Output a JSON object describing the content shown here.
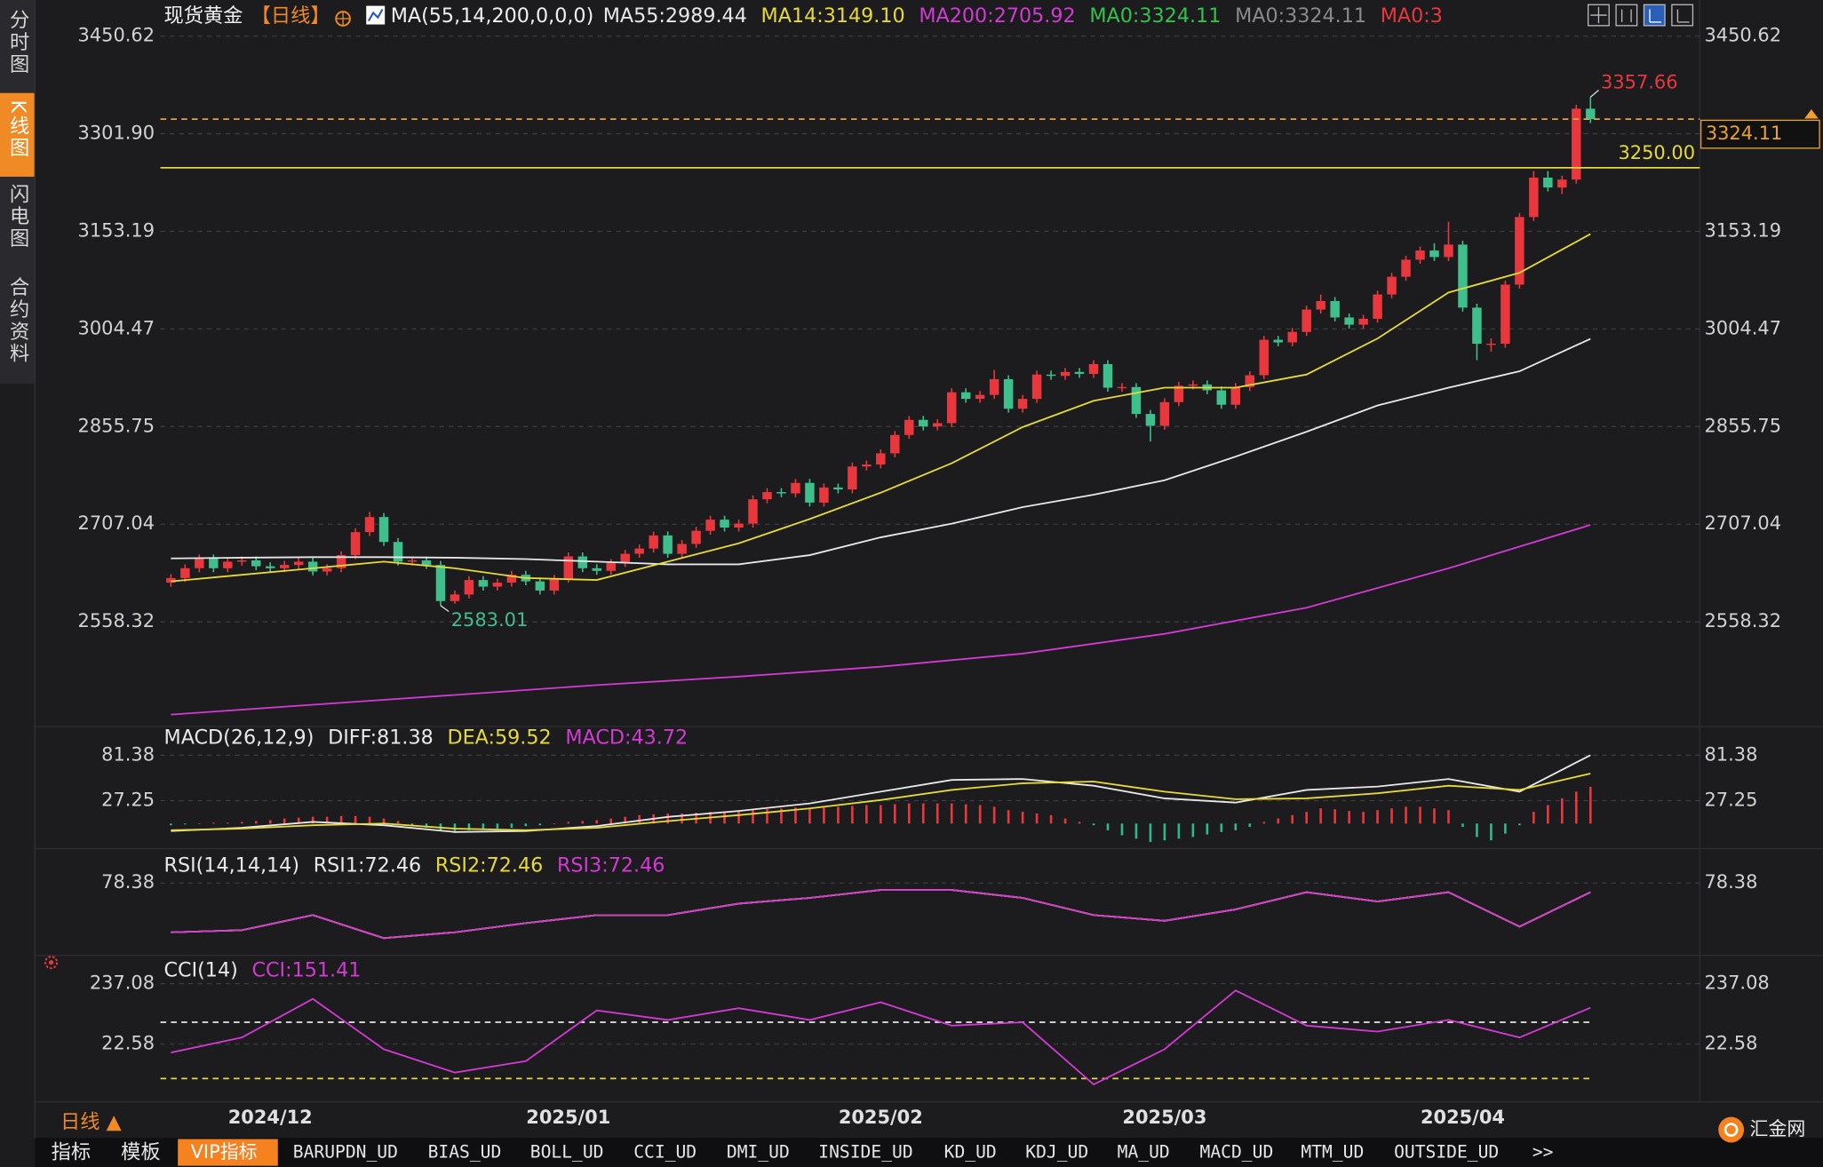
{
  "sidebar": {
    "tabs": [
      "分时图",
      "K线图",
      "闪电图",
      "合约资料"
    ]
  },
  "chart_data": [
    {
      "type": "candlestick",
      "title": "现货黄金",
      "period": "【日线】",
      "subtitle": "MA(55,14,200,0,0,0)",
      "up_color": "#e8383d",
      "down_color": "#3fbf8c",
      "grid": true,
      "ylim": [
        2398.98,
        3491.34
      ],
      "yticks": [
        3450.62,
        {
          "value": 3301.9,
          "label": "3301.90"
        },
        3153.19,
        3004.47,
        2855.75,
        2707.04,
        2558.32
      ],
      "categories": [
        null,
        null,
        null,
        null,
        null,
        null,
        null,
        "2024/12",
        null,
        null,
        null,
        null,
        null,
        null,
        null,
        null,
        null,
        null,
        null,
        null,
        null,
        null,
        null,
        null,
        null,
        null,
        null,
        null,
        "2025/01",
        null,
        null,
        null,
        null,
        null,
        null,
        null,
        null,
        null,
        null,
        null,
        null,
        null,
        null,
        null,
        null,
        null,
        null,
        null,
        null,
        null,
        "2025/02",
        null,
        null,
        null,
        null,
        null,
        null,
        null,
        null,
        null,
        null,
        null,
        null,
        null,
        null,
        null,
        null,
        null,
        null,
        null,
        "2025/03",
        null,
        null,
        null,
        null,
        null,
        null,
        null,
        null,
        null,
        null,
        null,
        null,
        null,
        null,
        null,
        null,
        null,
        null,
        null,
        null,
        "2025/04",
        null,
        null,
        null,
        null,
        null,
        null,
        null,
        null,
        null
      ],
      "open": [
        2618,
        2625,
        2640,
        2655,
        2640,
        2650,
        2652,
        2643,
        2640,
        2645,
        2650,
        2635,
        2640,
        2660,
        2695,
        2718,
        2680,
        2650,
        2652,
        2645,
        2590,
        2600,
        2622,
        2612,
        2618,
        2630,
        2620,
        2606,
        2624,
        2658,
        2640,
        2636,
        2648,
        2662,
        2670,
        2690,
        2662,
        2677,
        2697,
        2714,
        2702,
        2708,
        2745,
        2756,
        2754,
        2770,
        2740,
        2763,
        2760,
        2795,
        2798,
        2815,
        2843,
        2866,
        2856,
        2861,
        2908,
        2898,
        2904,
        2928,
        2883,
        2898,
        2935,
        2933,
        2939,
        2936,
        2951,
        2915,
        2916,
        2875,
        2857,
        2893,
        2918,
        2920,
        2911,
        2889,
        2916,
        2934,
        2988,
        2984,
        3000,
        3034,
        3047,
        3022,
        3011,
        3020,
        3057,
        3084,
        3110,
        3124,
        3114,
        3133,
        3037,
        2982,
        2982,
        3072,
        3175,
        3235,
        3220,
        3232,
        3340
      ],
      "high": [
        2631,
        2646,
        2661,
        2661,
        2656,
        2658,
        2658,
        2649,
        2651,
        2656,
        2656,
        2646,
        2666,
        2701,
        2726,
        2724,
        2686,
        2658,
        2658,
        2651,
        2606,
        2628,
        2628,
        2624,
        2636,
        2636,
        2626,
        2630,
        2664,
        2664,
        2646,
        2654,
        2668,
        2676,
        2696,
        2696,
        2683,
        2703,
        2720,
        2720,
        2714,
        2751,
        2762,
        2762,
        2776,
        2776,
        2769,
        2769,
        2801,
        2804,
        2821,
        2849,
        2872,
        2872,
        2867,
        2914,
        2914,
        2910,
        2942,
        2934,
        2904,
        2941,
        2941,
        2945,
        2945,
        2957,
        2957,
        2922,
        2922,
        2881,
        2899,
        2924,
        2926,
        2926,
        2917,
        2922,
        2940,
        2994,
        2994,
        3006,
        3040,
        3057,
        3053,
        3028,
        3026,
        3063,
        3090,
        3116,
        3130,
        3135,
        3168,
        3139,
        3043,
        2990,
        3078,
        3181,
        3245,
        3245,
        3238,
        3346,
        3357.66
      ],
      "low": [
        2612,
        2619,
        2634,
        2634,
        2634,
        2644,
        2637,
        2634,
        2634,
        2639,
        2629,
        2629,
        2634,
        2654,
        2689,
        2674,
        2644,
        2644,
        2639,
        2583.01,
        2586,
        2594,
        2606,
        2606,
        2612,
        2614,
        2600,
        2600,
        2618,
        2634,
        2630,
        2630,
        2642,
        2656,
        2664,
        2656,
        2656,
        2671,
        2691,
        2696,
        2696,
        2702,
        2739,
        2748,
        2748,
        2734,
        2734,
        2754,
        2754,
        2789,
        2792,
        2809,
        2837,
        2850,
        2850,
        2855,
        2892,
        2892,
        2898,
        2877,
        2877,
        2892,
        2927,
        2927,
        2930,
        2930,
        2909,
        2909,
        2869,
        2833,
        2851,
        2887,
        2912,
        2905,
        2883,
        2883,
        2910,
        2928,
        2978,
        2978,
        2994,
        3028,
        3016,
        3005,
        3005,
        3014,
        3051,
        3078,
        3104,
        3108,
        3108,
        3031,
        2957,
        2970,
        2976,
        3066,
        3169,
        3214,
        3210,
        3226,
        3318
      ],
      "close": [
        2625,
        2640,
        2655,
        2640,
        2650,
        2652,
        2643,
        2640,
        2645,
        2650,
        2635,
        2640,
        2660,
        2695,
        2718,
        2680,
        2650,
        2652,
        2645,
        2590,
        2600,
        2622,
        2612,
        2618,
        2630,
        2620,
        2606,
        2624,
        2658,
        2640,
        2636,
        2648,
        2662,
        2670,
        2690,
        2662,
        2677,
        2697,
        2714,
        2702,
        2708,
        2745,
        2756,
        2754,
        2770,
        2740,
        2763,
        2760,
        2795,
        2798,
        2815,
        2843,
        2866,
        2856,
        2861,
        2908,
        2898,
        2904,
        2928,
        2883,
        2898,
        2935,
        2933,
        2939,
        2936,
        2951,
        2915,
        2916,
        2875,
        2857,
        2893,
        2918,
        2920,
        2911,
        2889,
        2916,
        2934,
        2988,
        2984,
        3000,
        3034,
        3047,
        3022,
        3011,
        3020,
        3057,
        3084,
        3110,
        3124,
        3114,
        3133,
        3037,
        2982,
        2982,
        3072,
        3175,
        3235,
        3220,
        3232,
        3340,
        3324
      ],
      "series": [
        {
          "name": "MA55:2989.44",
          "color": "#e8e8e8",
          "x": [
            0,
            5,
            10,
            15,
            20,
            25,
            30,
            35,
            40,
            45,
            50,
            55,
            60,
            65,
            70,
            75,
            80,
            85,
            90,
            95,
            100
          ],
          "values": [
            2655,
            2656,
            2657,
            2657,
            2656,
            2654,
            2650,
            2646,
            2646,
            2660,
            2687,
            2708,
            2733,
            2752,
            2774,
            2810,
            2848,
            2888,
            2915,
            2940,
            2989.44
          ]
        },
        {
          "name": "MA14:3149.10",
          "color": "#e6d93a",
          "x": [
            0,
            5,
            10,
            15,
            20,
            25,
            30,
            35,
            40,
            45,
            50,
            55,
            60,
            65,
            70,
            75,
            80,
            85,
            90,
            95,
            100
          ],
          "values": [
            2620,
            2630,
            2640,
            2650,
            2640,
            2625,
            2622,
            2650,
            2678,
            2715,
            2755,
            2800,
            2855,
            2895,
            2915,
            2915,
            2935,
            2990,
            3060,
            3090,
            3149.1
          ]
        },
        {
          "name": "MA200:2705.92",
          "color": "#d23ad2",
          "x": [
            0,
            10,
            20,
            30,
            40,
            50,
            60,
            70,
            80,
            90,
            100
          ],
          "values": [
            2417,
            2432,
            2447,
            2462,
            2475,
            2490,
            2510,
            2540,
            2580,
            2640,
            2705.92
          ]
        }
      ],
      "extra_labels": [
        {
          "text": "MA0:3324.11",
          "color": "#33c24a"
        },
        {
          "text": "MA0:3324.11",
          "color": "#8a8a8a"
        },
        {
          "text": "MA0:3",
          "color": "#e8383d"
        }
      ],
      "hlines": [
        {
          "value": 3250,
          "label": "3250.00",
          "color": "#e6d93a",
          "style": "solid",
          "label_position": "inside"
        },
        {
          "value": 3324.11,
          "color": "#f0a030",
          "style": "dashed",
          "label_position": "axis"
        }
      ]
    },
    {
      "type": "combo",
      "title": "MACD(26,12,9)",
      "up_color": "#e8383d",
      "down_color": "#2fb88a",
      "grid": true,
      "ylim": [
        -29.7,
        115.6
      ],
      "yticks": [
        81.38,
        27.25
      ],
      "series": [
        {
          "name": "DIFF:81.38",
          "color": "#e8e8e8",
          "kind": "line",
          "x": [
            0,
            5,
            10,
            15,
            20,
            25,
            30,
            35,
            40,
            45,
            50,
            55,
            60,
            65,
            70,
            75,
            80,
            85,
            90,
            95,
            100
          ],
          "values": [
            -9,
            -5,
            2,
            -2,
            -10,
            -9,
            -3,
            8,
            15,
            24,
            38,
            52,
            53,
            45,
            30,
            25,
            40,
            44,
            53,
            38,
            81.38
          ]
        },
        {
          "name": "DEA:59.52",
          "color": "#e6d93a",
          "kind": "line",
          "x": [
            0,
            5,
            10,
            15,
            20,
            25,
            30,
            35,
            40,
            45,
            50,
            55,
            60,
            65,
            70,
            75,
            80,
            85,
            90,
            95,
            100
          ],
          "values": [
            -8,
            -6,
            -2,
            0,
            -6,
            -8,
            -5,
            3,
            10,
            18,
            28,
            40,
            48,
            50,
            38,
            29,
            30,
            36,
            45,
            40,
            59.52
          ]
        },
        {
          "name": "MACD:43.72",
          "color": "#d23ad2",
          "kind": "bar",
          "values": [
            -2,
            -1,
            0,
            1,
            1,
            2,
            3,
            4,
            6,
            7,
            8,
            8,
            9,
            9,
            8,
            6,
            3,
            -2,
            -5,
            -8,
            -9,
            -8,
            -7,
            -6,
            -5,
            -3,
            -2,
            0,
            2,
            3,
            4,
            6,
            8,
            10,
            11,
            12,
            12,
            13,
            14,
            14,
            15,
            16,
            17,
            18,
            19,
            18,
            19,
            20,
            21,
            22,
            22,
            23,
            24,
            24,
            24,
            24,
            23,
            22,
            20,
            16,
            14,
            12,
            10,
            6,
            2,
            -2,
            -8,
            -14,
            -18,
            -22,
            -20,
            -18,
            -16,
            -13,
            -10,
            -8,
            -4,
            2,
            6,
            10,
            14,
            18,
            17,
            15,
            14,
            16,
            18,
            20,
            20,
            18,
            16,
            -4,
            -16,
            -20,
            -12,
            -2,
            14,
            22,
            30,
            38,
            43.72
          ]
        }
      ]
    },
    {
      "type": "combo",
      "title": "RSI(14,14,14)",
      "grid": true,
      "ylim": [
        31.7,
        96.9
      ],
      "yticks": [
        78.38
      ],
      "series": [
        {
          "name": "RSI1:72.46",
          "color": "#e8e8e8",
          "kind": "line",
          "x": [
            0,
            5,
            10,
            15,
            20,
            25,
            30,
            35,
            40,
            45,
            50,
            55,
            60,
            65,
            70,
            75,
            80,
            85,
            90,
            95,
            100
          ],
          "values": [
            46.6,
            48,
            57.7,
            42.9,
            46.6,
            52.5,
            57.7,
            57.7,
            65.1,
            68.8,
            73.9,
            73.9,
            68.8,
            57.7,
            54,
            61.4,
            72.5,
            66.5,
            72.5,
            50.3,
            72.46
          ]
        },
        {
          "name": "RSI2:72.46",
          "color": "#e6d93a",
          "kind": "line",
          "x": [
            0,
            5,
            10,
            15,
            20,
            25,
            30,
            35,
            40,
            45,
            50,
            55,
            60,
            65,
            70,
            75,
            80,
            85,
            90,
            95,
            100
          ],
          "values": [
            46.6,
            48,
            57.7,
            42.9,
            46.6,
            52.5,
            57.7,
            57.7,
            65.1,
            68.8,
            73.9,
            73.9,
            68.8,
            57.7,
            54,
            61.4,
            72.5,
            66.5,
            72.5,
            50.3,
            72.46
          ]
        },
        {
          "name": "RSI3:72.46",
          "color": "#d23ad2",
          "kind": "line",
          "x": [
            0,
            5,
            10,
            15,
            20,
            25,
            30,
            35,
            40,
            45,
            50,
            55,
            60,
            65,
            70,
            75,
            80,
            85,
            90,
            95,
            100
          ],
          "values": [
            46.6,
            48,
            57.7,
            42.9,
            46.6,
            52.5,
            57.7,
            57.7,
            65.1,
            68.8,
            73.9,
            73.9,
            68.8,
            57.7,
            54,
            61.4,
            72.5,
            66.5,
            72.5,
            50.3,
            72.46
          ]
        }
      ]
    },
    {
      "type": "combo",
      "title": "CCI(14)",
      "grid": true,
      "ylim": [
        -183,
        325
      ],
      "yticks": [
        237.08,
        22.58
      ],
      "ref_lines": [
        {
          "value": 100,
          "color": "#e8e8e8"
        },
        {
          "value": -100,
          "color": "#e6d93a"
        }
      ],
      "series": [
        {
          "name": "CCI:151.41",
          "color": "#d23ad2",
          "kind": "line",
          "x": [
            0,
            5,
            10,
            15,
            20,
            25,
            30,
            35,
            40,
            45,
            50,
            55,
            60,
            65,
            70,
            75,
            80,
            85,
            90,
            95,
            100
          ],
          "values": [
            -8,
            46,
            183,
            4,
            -79,
            -38,
            142,
            108,
            150,
            108,
            171,
            88,
            100,
            -121,
            4,
            213,
            88,
            67,
            108,
            46,
            151.41
          ]
        }
      ]
    }
  ],
  "footer": {
    "period": "日线 ▲",
    "toolbar": [
      "指标",
      "模板",
      "VIP指标",
      "BARUPDN_UD",
      "BIAS_UD",
      "BOLL_UD",
      "CCI_UD",
      "DMI_UD",
      "INSIDE_UD",
      "KD_UD",
      "KDJ_UD",
      "MA_UD",
      "MACD_UD",
      "MTM_UD",
      "OUTSIDE_UD",
      ">>"
    ],
    "logo": "汇金网"
  }
}
